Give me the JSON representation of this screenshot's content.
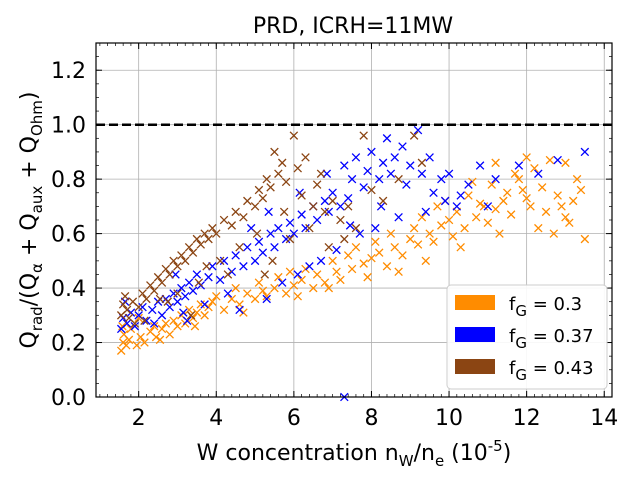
{
  "chart_data": {
    "type": "scatter",
    "title": "PRD, ICRH=11MW",
    "xlabel": "W concentration n_W/n_e (10^-5)",
    "ylabel": "Q_rad/(Q_α + Q_aux + Q_Ohm)",
    "xlim": [
      0.9,
      14.2
    ],
    "ylim": [
      0.0,
      1.3
    ],
    "x_ticks": [
      2,
      4,
      6,
      8,
      10,
      12,
      14
    ],
    "y_ticks": [
      0.0,
      0.2,
      0.4,
      0.6,
      0.8,
      1.0,
      1.2
    ],
    "x_tick_labels": [
      "2",
      "4",
      "6",
      "8",
      "10",
      "12",
      "14"
    ],
    "y_tick_labels": [
      "0.0",
      "0.2",
      "0.4",
      "0.6",
      "0.8",
      "1.0",
      "1.2"
    ],
    "grid": true,
    "marker": "x",
    "reference_line": {
      "y": 1.0,
      "style": "dashed",
      "color": "#000000"
    },
    "legend_position": "lower-right",
    "series": [
      {
        "name": "f_G = 0.3",
        "color": "#ff8c00",
        "points": [
          [
            1.55,
            0.17
          ],
          [
            1.6,
            0.2
          ],
          [
            1.62,
            0.23
          ],
          [
            1.68,
            0.19
          ],
          [
            1.75,
            0.21
          ],
          [
            1.8,
            0.25
          ],
          [
            1.95,
            0.19
          ],
          [
            2.05,
            0.22
          ],
          [
            2.15,
            0.2
          ],
          [
            2.3,
            0.24
          ],
          [
            2.4,
            0.26
          ],
          [
            2.45,
            0.22
          ],
          [
            2.6,
            0.25
          ],
          [
            2.7,
            0.27
          ],
          [
            2.8,
            0.23
          ],
          [
            2.9,
            0.28
          ],
          [
            3.0,
            0.26
          ],
          [
            3.1,
            0.3
          ],
          [
            3.2,
            0.27
          ],
          [
            3.3,
            0.32
          ],
          [
            3.4,
            0.29
          ],
          [
            3.5,
            0.31
          ],
          [
            3.6,
            0.34
          ],
          [
            3.7,
            0.3
          ],
          [
            3.8,
            0.33
          ],
          [
            3.9,
            0.35
          ],
          [
            4.0,
            0.37
          ],
          [
            4.2,
            0.32
          ],
          [
            4.4,
            0.36
          ],
          [
            4.5,
            0.4
          ],
          [
            4.6,
            0.34
          ],
          [
            4.8,
            0.38
          ],
          [
            5.0,
            0.36
          ],
          [
            5.1,
            0.42
          ],
          [
            5.2,
            0.39
          ],
          [
            5.3,
            0.37
          ],
          [
            5.5,
            0.4
          ],
          [
            5.6,
            0.44
          ],
          [
            5.8,
            0.38
          ],
          [
            5.9,
            0.46
          ],
          [
            6.0,
            0.41
          ],
          [
            6.2,
            0.43
          ],
          [
            6.3,
            0.47
          ],
          [
            6.5,
            0.4
          ],
          [
            6.6,
            0.45
          ],
          [
            6.8,
            0.42
          ],
          [
            7.0,
            0.5
          ],
          [
            7.1,
            0.46
          ],
          [
            7.2,
            0.43
          ],
          [
            7.4,
            0.52
          ],
          [
            7.5,
            0.47
          ],
          [
            7.6,
            0.55
          ],
          [
            7.8,
            0.49
          ],
          [
            8.0,
            0.51
          ],
          [
            8.1,
            0.57
          ],
          [
            8.2,
            0.53
          ],
          [
            8.4,
            0.48
          ],
          [
            8.5,
            0.6
          ],
          [
            8.6,
            0.55
          ],
          [
            8.8,
            0.52
          ],
          [
            9.0,
            0.58
          ],
          [
            9.1,
            0.62
          ],
          [
            9.2,
            0.56
          ],
          [
            9.3,
            0.66
          ],
          [
            9.5,
            0.6
          ],
          [
            9.6,
            0.57
          ],
          [
            9.7,
            0.7
          ],
          [
            9.8,
            0.63
          ],
          [
            10.0,
            0.65
          ],
          [
            10.1,
            0.59
          ],
          [
            10.2,
            0.68
          ],
          [
            10.4,
            0.62
          ],
          [
            10.5,
            0.74
          ],
          [
            10.7,
            0.66
          ],
          [
            10.8,
            0.71
          ],
          [
            11.0,
            0.64
          ],
          [
            11.1,
            0.78
          ],
          [
            11.2,
            0.69
          ],
          [
            11.4,
            0.72
          ],
          [
            11.5,
            0.75
          ],
          [
            11.6,
            0.67
          ],
          [
            11.8,
            0.8
          ],
          [
            12.0,
            0.73
          ],
          [
            12.1,
            0.7
          ],
          [
            12.2,
            0.84
          ],
          [
            12.4,
            0.77
          ],
          [
            12.5,
            0.68
          ],
          [
            12.6,
            0.87
          ],
          [
            12.8,
            0.74
          ],
          [
            12.9,
            0.7
          ],
          [
            13.0,
            0.66
          ],
          [
            13.2,
            0.72
          ],
          [
            13.3,
            0.8
          ],
          [
            13.5,
            0.58
          ],
          [
            13.4,
            0.76
          ],
          [
            12.3,
            0.62
          ],
          [
            11.3,
            0.6
          ],
          [
            10.3,
            0.55
          ],
          [
            9.4,
            0.5
          ],
          [
            8.7,
            0.46
          ],
          [
            7.9,
            0.44
          ],
          [
            6.9,
            0.4
          ],
          [
            6.1,
            0.37
          ],
          [
            4.7,
            0.31
          ],
          [
            3.45,
            0.26
          ],
          [
            2.55,
            0.21
          ],
          [
            1.58,
            0.26
          ],
          [
            2.0,
            0.29
          ],
          [
            12.7,
            0.6
          ],
          [
            13.1,
            0.64
          ],
          [
            11.9,
            0.76
          ],
          [
            10.9,
            0.7
          ],
          [
            9.9,
            0.72
          ],
          [
            11.7,
            0.82
          ],
          [
            10.6,
            0.79
          ],
          [
            13.0,
            0.86
          ],
          [
            12.0,
            0.88
          ],
          [
            11.2,
            0.86
          ]
        ]
      },
      {
        "name": "f_G = 0.37",
        "color": "#0000ff",
        "points": [
          [
            1.55,
            0.25
          ],
          [
            1.6,
            0.29
          ],
          [
            1.7,
            0.27
          ],
          [
            1.8,
            0.31
          ],
          [
            1.9,
            0.26
          ],
          [
            2.0,
            0.3
          ],
          [
            2.1,
            0.33
          ],
          [
            2.2,
            0.28
          ],
          [
            2.35,
            0.32
          ],
          [
            2.5,
            0.35
          ],
          [
            2.6,
            0.3
          ],
          [
            2.7,
            0.36
          ],
          [
            2.8,
            0.33
          ],
          [
            2.9,
            0.38
          ],
          [
            3.0,
            0.35
          ],
          [
            3.1,
            0.4
          ],
          [
            3.2,
            0.37
          ],
          [
            3.3,
            0.42
          ],
          [
            3.4,
            0.39
          ],
          [
            3.5,
            0.45
          ],
          [
            3.6,
            0.41
          ],
          [
            3.8,
            0.44
          ],
          [
            3.9,
            0.48
          ],
          [
            4.1,
            0.43
          ],
          [
            4.2,
            0.5
          ],
          [
            4.4,
            0.46
          ],
          [
            4.5,
            0.52
          ],
          [
            4.7,
            0.48
          ],
          [
            4.8,
            0.55
          ],
          [
            5.0,
            0.5
          ],
          [
            5.1,
            0.57
          ],
          [
            5.2,
            0.53
          ],
          [
            5.4,
            0.6
          ],
          [
            5.5,
            0.55
          ],
          [
            5.6,
            0.62
          ],
          [
            5.8,
            0.58
          ],
          [
            5.9,
            0.64
          ],
          [
            6.0,
            0.6
          ],
          [
            6.2,
            0.67
          ],
          [
            6.3,
            0.62
          ],
          [
            6.5,
            0.7
          ],
          [
            6.6,
            0.65
          ],
          [
            6.8,
            0.72
          ],
          [
            6.9,
            0.68
          ],
          [
            7.0,
            0.75
          ],
          [
            7.2,
            0.7
          ],
          [
            7.3,
            0.85
          ],
          [
            7.4,
            0.73
          ],
          [
            7.5,
            0.8
          ],
          [
            7.6,
            0.88
          ],
          [
            7.8,
            0.77
          ],
          [
            7.9,
            0.83
          ],
          [
            8.0,
            0.9
          ],
          [
            8.2,
            0.8
          ],
          [
            8.3,
            0.86
          ],
          [
            8.4,
            0.95
          ],
          [
            8.5,
            0.82
          ],
          [
            8.6,
            0.88
          ],
          [
            8.8,
            0.92
          ],
          [
            8.9,
            0.78
          ],
          [
            9.0,
            0.85
          ],
          [
            9.2,
            0.98
          ],
          [
            9.3,
            0.82
          ],
          [
            9.5,
            0.88
          ],
          [
            9.6,
            0.75
          ],
          [
            9.8,
            0.8
          ],
          [
            9.9,
            0.72
          ],
          [
            10.0,
            0.82
          ],
          [
            10.2,
            0.7
          ],
          [
            10.5,
            0.78
          ],
          [
            10.8,
            0.85
          ],
          [
            11.0,
            0.7
          ],
          [
            11.2,
            0.8
          ],
          [
            11.8,
            0.85
          ],
          [
            12.3,
            0.82
          ],
          [
            12.8,
            0.87
          ],
          [
            13.5,
            0.9
          ],
          [
            7.3,
            0.0
          ],
          [
            4.6,
            0.32
          ],
          [
            5.3,
            0.36
          ],
          [
            6.1,
            0.45
          ],
          [
            6.7,
            0.5
          ],
          [
            7.1,
            0.54
          ],
          [
            7.7,
            0.6
          ],
          [
            8.1,
            0.62
          ],
          [
            8.7,
            0.66
          ],
          [
            9.4,
            0.68
          ],
          [
            10.3,
            0.74
          ],
          [
            2.4,
            0.27
          ],
          [
            3.15,
            0.31
          ],
          [
            3.7,
            0.34
          ],
          [
            4.3,
            0.38
          ],
          [
            5.7,
            0.42
          ],
          [
            6.4,
            0.48
          ],
          [
            2.95,
            0.45
          ],
          [
            3.25,
            0.28
          ],
          [
            1.65,
            0.35
          ],
          [
            4.9,
            0.62
          ],
          [
            5.35,
            0.68
          ],
          [
            6.15,
            0.75
          ],
          [
            6.85,
            0.82
          ],
          [
            7.45,
            0.63
          ],
          [
            8.25,
            0.7
          ]
        ]
      },
      {
        "name": "f_G = 0.43",
        "color": "#8b4513",
        "points": [
          [
            1.55,
            0.3
          ],
          [
            1.6,
            0.34
          ],
          [
            1.65,
            0.37
          ],
          [
            1.7,
            0.32
          ],
          [
            1.75,
            0.29
          ],
          [
            1.85,
            0.35
          ],
          [
            2.0,
            0.33
          ],
          [
            2.1,
            0.38
          ],
          [
            2.2,
            0.36
          ],
          [
            2.3,
            0.41
          ],
          [
            2.4,
            0.39
          ],
          [
            2.5,
            0.44
          ],
          [
            2.6,
            0.42
          ],
          [
            2.7,
            0.47
          ],
          [
            2.8,
            0.45
          ],
          [
            2.9,
            0.5
          ],
          [
            3.0,
            0.48
          ],
          [
            3.1,
            0.52
          ],
          [
            3.2,
            0.5
          ],
          [
            3.3,
            0.55
          ],
          [
            3.4,
            0.53
          ],
          [
            3.5,
            0.58
          ],
          [
            3.6,
            0.56
          ],
          [
            3.7,
            0.6
          ],
          [
            3.8,
            0.58
          ],
          [
            3.9,
            0.62
          ],
          [
            4.0,
            0.6
          ],
          [
            4.2,
            0.65
          ],
          [
            4.4,
            0.63
          ],
          [
            4.5,
            0.68
          ],
          [
            4.7,
            0.66
          ],
          [
            4.8,
            0.72
          ],
          [
            5.0,
            0.7
          ],
          [
            5.1,
            0.76
          ],
          [
            5.2,
            0.73
          ],
          [
            5.3,
            0.8
          ],
          [
            5.4,
            0.77
          ],
          [
            5.5,
            0.9
          ],
          [
            5.6,
            0.82
          ],
          [
            5.7,
            0.86
          ],
          [
            5.8,
            0.79
          ],
          [
            6.0,
            0.96
          ],
          [
            6.1,
            0.84
          ],
          [
            6.2,
            0.74
          ],
          [
            6.3,
            0.88
          ],
          [
            6.5,
            0.7
          ],
          [
            6.6,
            0.78
          ],
          [
            6.8,
            0.68
          ],
          [
            7.0,
            0.72
          ],
          [
            7.2,
            0.65
          ],
          [
            7.4,
            0.7
          ],
          [
            7.6,
            0.62
          ],
          [
            7.8,
            0.96
          ],
          [
            8.0,
            0.76
          ],
          [
            8.3,
            0.72
          ],
          [
            8.7,
            0.8
          ],
          [
            9.1,
            0.96
          ],
          [
            9.3,
            0.86
          ],
          [
            3.35,
            0.3
          ],
          [
            3.0,
            0.38
          ],
          [
            2.75,
            0.35
          ],
          [
            4.1,
            0.5
          ],
          [
            4.6,
            0.55
          ],
          [
            5.05,
            0.6
          ],
          [
            5.45,
            0.5
          ],
          [
            5.9,
            0.58
          ],
          [
            6.4,
            0.62
          ],
          [
            6.9,
            0.55
          ],
          [
            7.3,
            0.58
          ],
          [
            2.15,
            0.28
          ],
          [
            1.9,
            0.27
          ],
          [
            3.55,
            0.42
          ],
          [
            4.3,
            0.45
          ],
          [
            5.25,
            0.45
          ],
          [
            5.75,
            0.68
          ],
          [
            6.7,
            0.82
          ],
          [
            2.55,
            0.36
          ],
          [
            3.75,
            0.48
          ]
        ]
      }
    ]
  }
}
